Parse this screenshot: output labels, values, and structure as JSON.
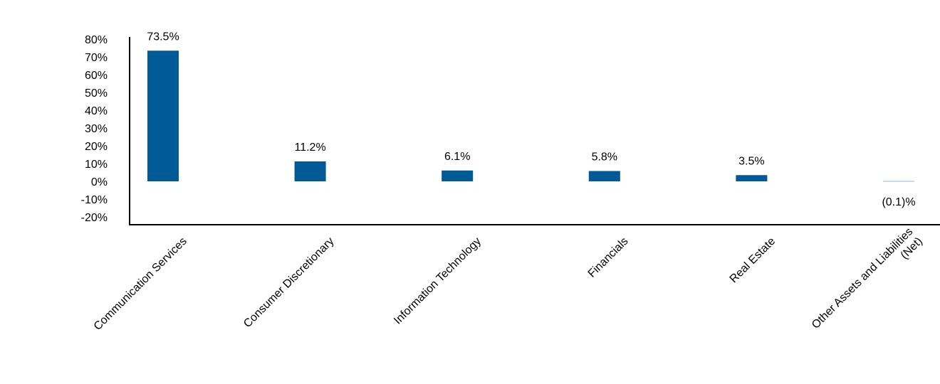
{
  "chart_data": {
    "type": "bar",
    "title": "",
    "xlabel": "",
    "ylabel": "",
    "categories": [
      [
        "Communication Services"
      ],
      [
        "Consumer Discretionary"
      ],
      [
        "Information Technology"
      ],
      [
        "Financials"
      ],
      [
        "Real Estate"
      ],
      [
        "Other Assets and Liabilities",
        "(Net)"
      ]
    ],
    "values": [
      73.5,
      11.2,
      6.1,
      5.8,
      3.5,
      -0.1
    ],
    "data_labels": [
      "73.5%",
      "11.2%",
      "6.1%",
      "5.8%",
      "3.5%",
      "(0.1)%"
    ],
    "ylim": [
      -20,
      80
    ],
    "y_ticks": [
      80,
      70,
      60,
      50,
      40,
      30,
      20,
      10,
      0,
      -10,
      -20
    ],
    "y_tick_labels": [
      "80%",
      "70%",
      "60%",
      "50%",
      "40%",
      "30%",
      "20%",
      "10%",
      "0%",
      "-10%",
      "-20%"
    ],
    "grid": false,
    "legend": "none",
    "bar_color": "#005A96"
  }
}
